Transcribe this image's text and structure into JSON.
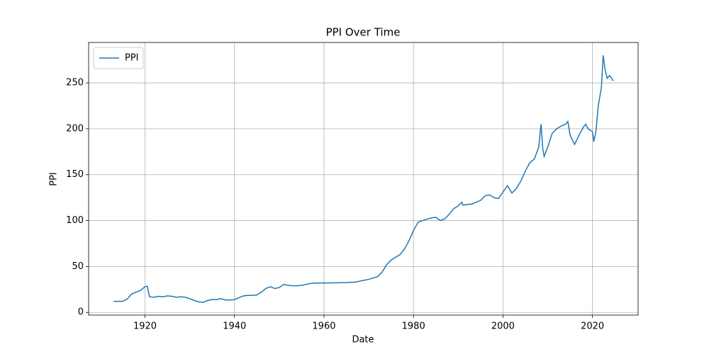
{
  "chart_data": {
    "type": "line",
    "title": "PPI Over Time",
    "x_label": "Date",
    "y_label": "PPI",
    "x": [
      1913,
      1914,
      1915,
      1916,
      1917,
      1918,
      1919,
      1920,
      1920.5,
      1921,
      1922,
      1923,
      1924,
      1925,
      1926,
      1927,
      1928,
      1929,
      1930,
      1931,
      1932,
      1933,
      1934,
      1935,
      1936,
      1937,
      1938,
      1939,
      1940,
      1941,
      1942,
      1943,
      1944,
      1945,
      1946,
      1947,
      1948,
      1949,
      1950,
      1951,
      1952,
      1953,
      1954,
      1955,
      1956,
      1957,
      1958,
      1960,
      1965,
      1967,
      1968,
      1970,
      1972,
      1973,
      1974,
      1975,
      1977,
      1978,
      1979,
      1980,
      1981,
      1982,
      1984,
      1985,
      1986,
      1987,
      1988,
      1989,
      1990,
      1990.8,
      1991,
      1993,
      1995,
      1996,
      1997,
      1998,
      1999,
      2000,
      2001,
      2002,
      2003,
      2004,
      2005,
      2006,
      2007,
      2008,
      2008.5,
      2008.9,
      2009.2,
      2010,
      2011,
      2012,
      2013,
      2014,
      2014.5,
      2015,
      2016,
      2017,
      2018,
      2018.5,
      2019,
      2020,
      2020.3,
      2020.8,
      2021.3,
      2022,
      2022.4,
      2022.8,
      2023.3,
      2023.8,
      2024.3,
      2024.6
    ],
    "series": [
      {
        "name": "PPI",
        "color": "#1f77b4",
        "values": [
          12,
          12,
          12,
          14.5,
          20,
          22,
          24,
          28,
          28.5,
          17,
          16.5,
          17.5,
          17,
          18,
          17.5,
          16.5,
          17,
          16.5,
          15,
          13,
          11.5,
          11,
          13,
          14,
          14,
          15,
          13.5,
          13.5,
          14,
          16,
          18,
          18.5,
          18.5,
          19,
          22,
          26,
          28,
          26,
          27,
          30.5,
          29.5,
          29,
          29,
          29.5,
          30.5,
          31.5,
          32,
          32,
          32.5,
          33,
          34,
          36,
          39,
          44,
          52,
          57,
          63,
          69,
          78,
          89,
          98,
          100,
          103,
          103.5,
          100,
          102,
          107,
          113,
          116,
          120,
          117,
          118,
          122,
          127,
          128,
          125,
          124,
          131,
          138,
          130,
          135,
          143,
          154,
          163,
          167,
          180,
          205,
          178,
          170,
          180,
          195,
          200,
          203,
          205,
          208,
          193,
          183,
          193,
          202,
          205,
          200,
          197,
          186,
          198,
          225,
          245,
          280,
          265,
          255,
          258,
          255,
          252
        ]
      }
    ],
    "xlim": [
      1907.4,
      2030.2
    ],
    "ylim": [
      -2.9,
      294
    ],
    "xticks": [
      1920,
      1940,
      1960,
      1980,
      2000,
      2020
    ],
    "yticks": [
      0,
      50,
      100,
      150,
      200,
      250
    ],
    "grid": true,
    "legend": "upper left"
  }
}
